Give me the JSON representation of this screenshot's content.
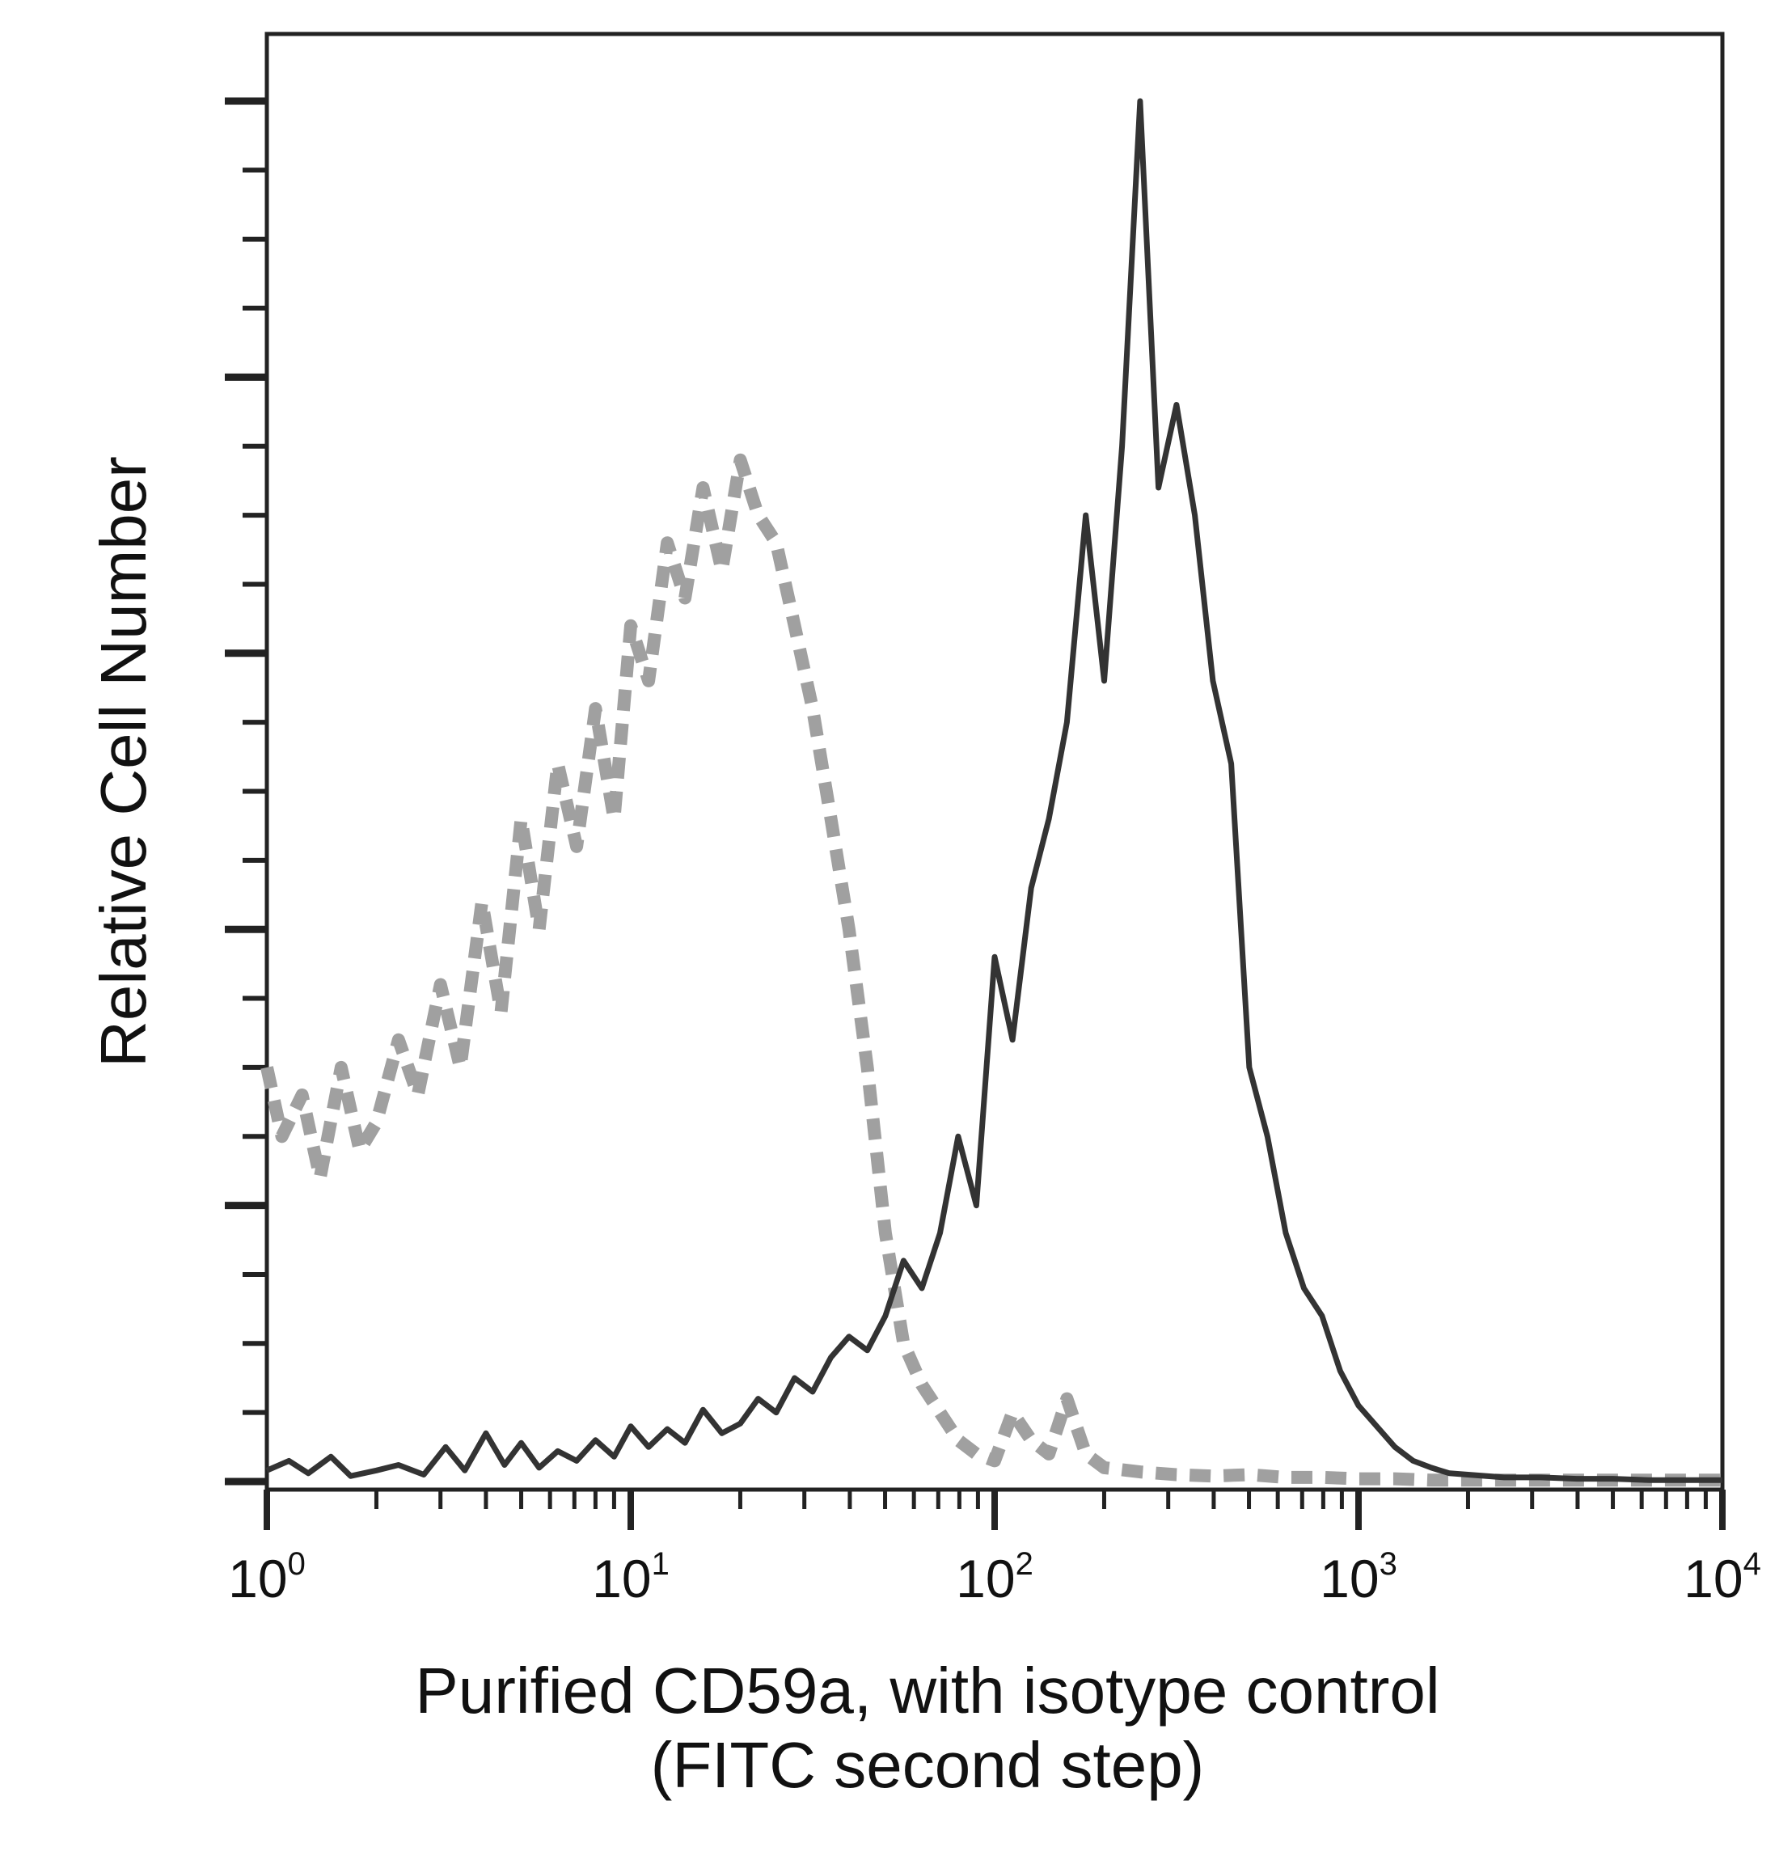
{
  "chart_data": {
    "type": "line",
    "title": "",
    "xlabel": "Purified CD59a, with isotype control",
    "xlabel_line2": "(FITC second step)",
    "ylabel": "Relative Cell Number",
    "x_scale": "log",
    "xlim": [
      1,
      10000
    ],
    "ylim": [
      0,
      100
    ],
    "x_tick_labels": [
      {
        "value": 1,
        "base": "10",
        "exp": "0"
      },
      {
        "value": 10,
        "base": "10",
        "exp": "1"
      },
      {
        "value": 100,
        "base": "10",
        "exp": "2"
      },
      {
        "value": 1000,
        "base": "10",
        "exp": "3"
      },
      {
        "value": 10000,
        "base": "10",
        "exp": "4"
      }
    ],
    "y_ticks_major": [
      0,
      20,
      40,
      60,
      80,
      100
    ],
    "y_ticks_minor_step": 5,
    "grid": false,
    "legend": "none",
    "series": [
      {
        "style": "dashed",
        "color": "#a0a0a0",
        "x": [
          1,
          1.1,
          1.25,
          1.4,
          1.6,
          1.8,
          2.0,
          2.3,
          2.6,
          3.0,
          3.4,
          3.9,
          4.4,
          5.0,
          5.6,
          6.3,
          7.1,
          8.0,
          9.0,
          10,
          11.2,
          12.6,
          14.1,
          15.8,
          17.8,
          20,
          22.4,
          25.1,
          28.2,
          31.6,
          35.5,
          39.8,
          44.7,
          50.1,
          56.2,
          63.1,
          70.8,
          79.4,
          89.1,
          100,
          112,
          126,
          141,
          158,
          178,
          200,
          251,
          316,
          398,
          501,
          631,
          794,
          1000,
          1259,
          1585,
          2000,
          3162,
          5012,
          7943,
          10000
        ],
        "y": [
          30,
          25,
          28,
          22,
          30,
          24,
          26,
          32,
          28,
          36,
          30,
          42,
          34,
          48,
          40,
          52,
          46,
          56,
          48,
          62,
          58,
          68,
          64,
          72,
          66,
          74,
          70,
          68,
          62,
          56,
          48,
          40,
          30,
          18,
          10,
          7,
          5,
          3,
          2,
          1.5,
          5,
          3,
          2,
          6,
          2,
          1,
          0.7,
          0.5,
          0.4,
          0.5,
          0.3,
          0.3,
          0.2,
          0.2,
          0.1,
          0.1,
          0.1,
          0.1,
          0.1,
          0.1
        ]
      },
      {
        "style": "solid",
        "color": "#333333",
        "x": [
          1,
          1.15,
          1.3,
          1.5,
          1.7,
          2.0,
          2.3,
          2.7,
          3.1,
          3.5,
          4.0,
          4.5,
          5.0,
          5.6,
          6.3,
          7.1,
          8.0,
          9.0,
          10,
          11.2,
          12.6,
          14.1,
          15.8,
          17.8,
          20,
          22.4,
          25.1,
          28.2,
          31.6,
          35.5,
          39.8,
          44.7,
          50.1,
          56.2,
          63.1,
          70.8,
          79.4,
          89.1,
          100,
          112,
          126,
          141,
          158,
          178,
          200,
          224,
          251,
          282,
          316,
          355,
          398,
          447,
          501,
          562,
          631,
          708,
          794,
          891,
          1000,
          1122,
          1259,
          1413,
          1585,
          1778,
          2000,
          2512,
          3162,
          3981,
          5012,
          6310,
          7943,
          10000
        ],
        "y": [
          0.8,
          1.5,
          0.6,
          1.8,
          0.4,
          0.8,
          1.2,
          0.5,
          2.5,
          0.8,
          3.5,
          1.2,
          2.8,
          1.0,
          2.2,
          1.5,
          3.0,
          1.8,
          4.0,
          2.5,
          3.8,
          2.8,
          5.2,
          3.5,
          4.2,
          6.0,
          5.0,
          7.5,
          6.5,
          9.0,
          10.5,
          9.5,
          12.0,
          16.0,
          14.0,
          18.0,
          25.0,
          20.0,
          38.0,
          32.0,
          43.0,
          48.0,
          55.0,
          70.0,
          58.0,
          75.0,
          100.0,
          72.0,
          78.0,
          70.0,
          58.0,
          52.0,
          30.0,
          25.0,
          18.0,
          14.0,
          12.0,
          8.0,
          5.5,
          4.0,
          2.5,
          1.5,
          1.0,
          0.6,
          0.5,
          0.3,
          0.3,
          0.2,
          0.2,
          0.1,
          0.1,
          0.1
        ]
      }
    ]
  }
}
